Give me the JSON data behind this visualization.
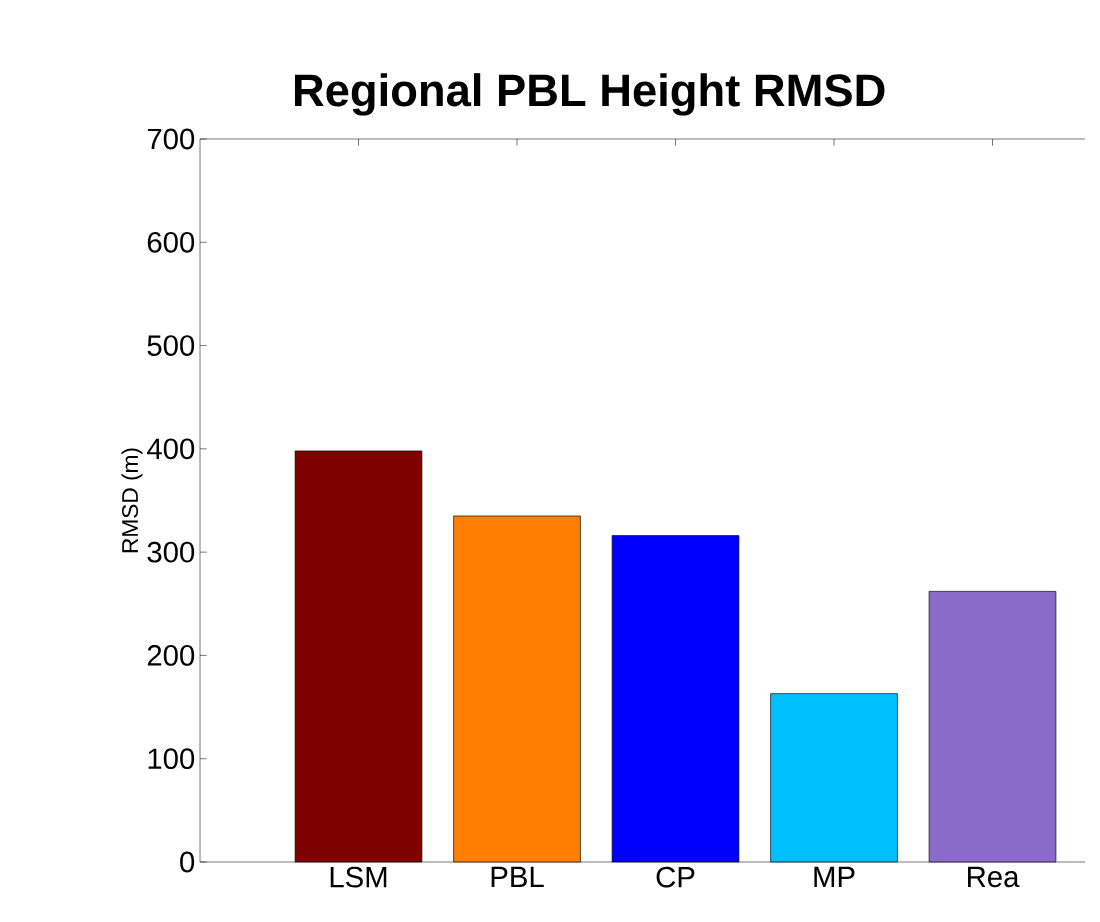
{
  "chart_data": {
    "type": "bar",
    "title": "Regional PBL Height RMSD",
    "ylabel": "RMSD (m)",
    "categories": [
      "LSM",
      "PBL",
      "CP",
      "MP",
      "Rea"
    ],
    "values": [
      398,
      335,
      316,
      163,
      262
    ],
    "colors": [
      "#800000",
      "#ff8000",
      "#0000ff",
      "#00bfff",
      "#8a6bcb"
    ],
    "ylim": [
      0,
      700
    ],
    "yticks": [
      0,
      100,
      200,
      300,
      400,
      500,
      600,
      700
    ]
  }
}
